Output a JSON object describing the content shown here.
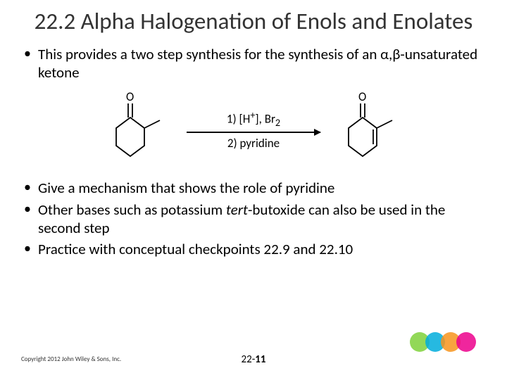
{
  "title": "22.2 Alpha Halogenation of Enols and Enolates",
  "bullets": {
    "b1": "This provides a two step synthesis for the synthesis of an α,β-unsaturated ketone",
    "b2": "Give a mechanism that shows the role of pyridine",
    "b3_pre": "Other bases such as potassium ",
    "b3_ital": "tert",
    "b3_post": "-butoxide can also be used in the second step",
    "b4": "Practice with conceptual checkpoints 22.9 and 22.10"
  },
  "reaction": {
    "reagent_top_a": "1) [H",
    "reagent_top_b": "], Br",
    "reagent_bot": "2) pyridine",
    "oxygen": "O"
  },
  "copyright": "Copyright 2012 John Wiley & Sons, Inc.",
  "page_pre": "22-",
  "page_num": "11",
  "circles": {
    "colors": [
      "#7fd13b",
      "#00addc",
      "#f7941d",
      "#ec008c"
    ],
    "r": 14,
    "overlap": 6,
    "opacity": 0.85
  }
}
